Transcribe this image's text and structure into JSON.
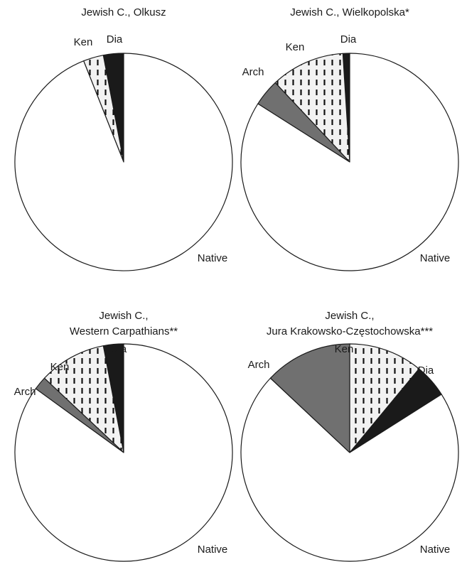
{
  "colors": {
    "native": "#ffffff",
    "arch": "#707070",
    "ken": "#f2f2f2",
    "ken_dash": "#111111",
    "dia": "#1a1a1a",
    "outline": "#1a1a1a"
  },
  "chart_data": [
    {
      "type": "pie",
      "title_lines": [
        "Jewish C., Olkusz"
      ],
      "start_angle_deg": 0,
      "direction": "counterclockwise",
      "slices": [
        {
          "label": "Dia",
          "value": 3,
          "color": "#1a1a1a",
          "pattern": "solid"
        },
        {
          "label": "Ken",
          "value": 3,
          "color": "#f2f2f2",
          "pattern": "dashed-lines"
        },
        {
          "label": "Native",
          "value": 94,
          "color": "#ffffff",
          "pattern": "solid"
        }
      ]
    },
    {
      "type": "pie",
      "title_lines": [
        "Jewish C., Wielkopolska*"
      ],
      "start_angle_deg": 0,
      "direction": "counterclockwise",
      "slices": [
        {
          "label": "Dia",
          "value": 1,
          "color": "#1a1a1a",
          "pattern": "solid"
        },
        {
          "label": "Ken",
          "value": 11,
          "color": "#f2f2f2",
          "pattern": "dashed-lines"
        },
        {
          "label": "Arch",
          "value": 4,
          "color": "#707070",
          "pattern": "solid"
        },
        {
          "label": "Native",
          "value": 84,
          "color": "#ffffff",
          "pattern": "solid"
        }
      ]
    },
    {
      "type": "pie",
      "title_lines": [
        "Jewish C.,",
        "Western Carpathians**"
      ],
      "start_angle_deg": 0,
      "direction": "counterclockwise",
      "slices": [
        {
          "label": "Dia",
          "value": 3,
          "color": "#1a1a1a",
          "pattern": "solid"
        },
        {
          "label": "Ken",
          "value": 10,
          "color": "#f2f2f2",
          "pattern": "dashed-lines"
        },
        {
          "label": "Arch",
          "value": 2,
          "color": "#707070",
          "pattern": "solid"
        },
        {
          "label": "Native",
          "value": 85,
          "color": "#ffffff",
          "pattern": "solid"
        }
      ]
    },
    {
      "type": "pie",
      "title_lines": [
        "Jewish C.,",
        "Jura Krakowsko-Częstochowska***"
      ],
      "start_angle_deg": 0,
      "direction": "clockwise",
      "slices": [
        {
          "label": "Ken",
          "value": 11,
          "color": "#f2f2f2",
          "pattern": "dashed-lines"
        },
        {
          "label": "Dia",
          "value": 5,
          "color": "#1a1a1a",
          "pattern": "solid"
        },
        {
          "label": "Native",
          "value": 71,
          "color": "#ffffff",
          "pattern": "solid"
        },
        {
          "label": "Arch",
          "value": 13,
          "color": "#707070",
          "pattern": "solid"
        }
      ]
    }
  ]
}
